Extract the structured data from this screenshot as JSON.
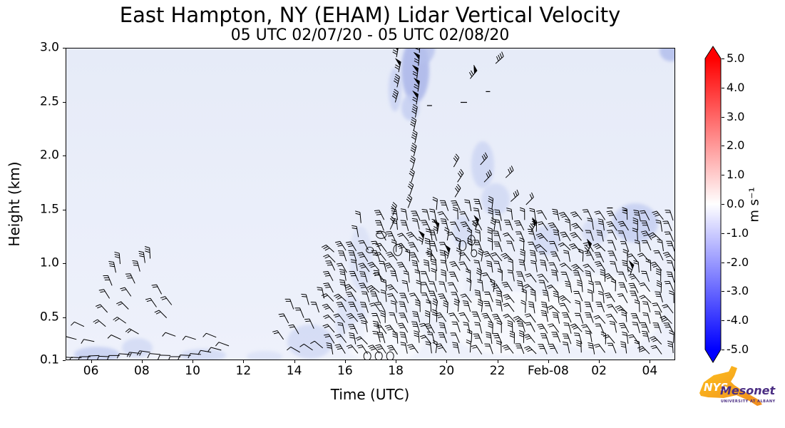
{
  "chart_data": {
    "type": "heatmap",
    "title": "East Hampton, NY (EHAM) Lidar Vertical Velocity",
    "subtitle": "05 UTC 02/07/20 - 05 UTC 02/08/20",
    "xlabel": "Time (UTC)",
    "ylabel": "Height (km)",
    "xlim_hours_utc": [
      5,
      29
    ],
    "ylim_km": [
      0.1,
      3.0
    ],
    "x_ticks": [
      {
        "t": 6,
        "label": "06"
      },
      {
        "t": 8,
        "label": "08"
      },
      {
        "t": 10,
        "label": "10"
      },
      {
        "t": 12,
        "label": "12"
      },
      {
        "t": 14,
        "label": "14"
      },
      {
        "t": 16,
        "label": "16"
      },
      {
        "t": 18,
        "label": "18"
      },
      {
        "t": 20,
        "label": "20"
      },
      {
        "t": 22,
        "label": "22"
      },
      {
        "t": 24,
        "label": "Feb-08"
      },
      {
        "t": 26,
        "label": "02"
      },
      {
        "t": 28,
        "label": "04"
      }
    ],
    "y_ticks": [
      {
        "z": 0.1,
        "label": "0.1"
      },
      {
        "z": 0.5,
        "label": "0.5"
      },
      {
        "z": 1.0,
        "label": "1.0"
      },
      {
        "z": 1.5,
        "label": "1.5"
      },
      {
        "z": 2.0,
        "label": "2.0"
      },
      {
        "z": 2.5,
        "label": "2.5"
      },
      {
        "z": 3.0,
        "label": "3.0"
      }
    ],
    "plot_background": {
      "top": "#e6ebf8",
      "bottom": "#eef1fb"
    },
    "field_summary": "Vertical velocity mostly near 0 to -1 m/s (pale blue/lavender); wind barbs in boundary layer below ~1.5 km from 14 UTC onward, tall barb column near 18-19 UTC reaching 3 km, scattered early-morning barbs 05-11 UTC below 1 km.",
    "colorbar": {
      "label": "m s⁻¹",
      "min": -5.0,
      "max": 5.0,
      "extend": "both",
      "colors": {
        "positive": "#ff0000",
        "zero": "#ffffff",
        "negative": "#0000ff"
      },
      "ticks": [
        {
          "v": 5,
          "label": "5.0"
        },
        {
          "v": 4,
          "label": "4.0"
        },
        {
          "v": 3,
          "label": "3.0"
        },
        {
          "v": 2,
          "label": "2.0"
        },
        {
          "v": 1,
          "label": "1.0"
        },
        {
          "v": 0,
          "label": "0.0"
        },
        {
          "v": -1,
          "label": "-1.0"
        },
        {
          "v": -2,
          "label": "-2.0"
        },
        {
          "v": -3,
          "label": "-3.0"
        },
        {
          "v": -4,
          "label": "-4.0"
        },
        {
          "v": -5,
          "label": "-5.0"
        }
      ]
    },
    "velocity_patches": [
      [
        18.75,
        2.8,
        0.55,
        0.3,
        "#aeb9ea",
        0.9
      ],
      [
        18.55,
        2.45,
        0.35,
        0.12,
        "#c3cdf1",
        0.8
      ],
      [
        19.05,
        3.0,
        0.45,
        0.14,
        "#b6c1ed",
        0.8
      ],
      [
        17.95,
        2.62,
        0.25,
        0.2,
        "#c3cdf1",
        0.7
      ],
      [
        28.8,
        2.98,
        0.45,
        0.1,
        "#b6c1ed",
        0.9
      ],
      [
        21.4,
        1.92,
        0.45,
        0.22,
        "#ccd5f3",
        0.8
      ],
      [
        21.9,
        1.6,
        0.55,
        0.15,
        "#ccd5f3",
        0.7
      ],
      [
        23.9,
        1.22,
        0.55,
        0.14,
        "#ccd5f3",
        0.7
      ],
      [
        27.4,
        1.38,
        0.9,
        0.18,
        "#c3cdf1",
        0.8
      ],
      [
        25.8,
        1.3,
        0.5,
        0.12,
        "#ccd5f3",
        0.6
      ],
      [
        20.6,
        1.3,
        0.4,
        0.15,
        "#ccd5f3",
        0.6
      ],
      [
        16.6,
        1.05,
        0.45,
        0.3,
        "#d4dcf5",
        0.6
      ],
      [
        14.6,
        0.28,
        0.9,
        0.16,
        "#ccd5f3",
        0.7
      ],
      [
        16.2,
        0.45,
        0.6,
        0.25,
        "#d4dcf5",
        0.6
      ],
      [
        6.2,
        0.16,
        0.9,
        0.07,
        "#c3cdf1",
        0.8
      ],
      [
        7.8,
        0.22,
        0.6,
        0.09,
        "#ccd5f3",
        0.7
      ],
      [
        10.4,
        0.15,
        0.9,
        0.06,
        "#ccd5f3",
        0.7
      ],
      [
        12.8,
        0.14,
        0.7,
        0.05,
        "#d4dcf5",
        0.6
      ],
      [
        22.5,
        0.45,
        2.5,
        0.3,
        "#ffffff",
        0.55
      ],
      [
        26.0,
        0.55,
        2.5,
        0.35,
        "#ffffff",
        0.5
      ],
      [
        17.5,
        0.3,
        1.6,
        0.22,
        "#ffffff",
        0.5
      ],
      [
        19.5,
        0.8,
        1.2,
        0.3,
        "#f7f9ff",
        0.5
      ]
    ],
    "wind_barbs": {
      "seed": 7,
      "groups": [
        {
          "t0": 15.55,
          "t1": 17.35,
          "dt": 0.45,
          "z0": 0.17,
          "z1": 1.12,
          "dz": 0.095,
          "dir": -30,
          "djit": 22,
          "spds": [
            2,
            3
          ]
        },
        {
          "t0": 17.55,
          "t1": 19.35,
          "dt": 0.45,
          "z0": 0.17,
          "z1": 1.38,
          "dz": 0.095,
          "dir": -18,
          "djit": 22,
          "spds": [
            2,
            3
          ]
        },
        {
          "t0": 19.55,
          "t1": 21.95,
          "dt": 0.45,
          "z0": 0.17,
          "z1": 1.48,
          "dz": 0.095,
          "dir": -12,
          "djit": 25,
          "spds": [
            2,
            3
          ]
        },
        {
          "t0": 22.15,
          "t1": 28.85,
          "dt": 0.45,
          "z0": 0.17,
          "z1": 1.4,
          "dz": 0.095,
          "dir": -22,
          "djit": 25,
          "spds": [
            2,
            3
          ]
        }
      ],
      "extra": [
        [
          6.55,
          0.42,
          -50,
          2
        ],
        [
          6.62,
          0.55,
          -42,
          2
        ],
        [
          6.7,
          0.68,
          -32,
          2
        ],
        [
          6.8,
          0.8,
          -22,
          3
        ],
        [
          6.95,
          0.92,
          -12,
          3
        ],
        [
          7.12,
          1.0,
          -5,
          3
        ],
        [
          7.35,
          0.45,
          -55,
          2
        ],
        [
          7.45,
          0.58,
          -45,
          2
        ],
        [
          7.55,
          0.7,
          -35,
          2
        ],
        [
          7.7,
          0.82,
          -25,
          3
        ],
        [
          7.9,
          0.93,
          -15,
          3
        ],
        [
          8.1,
          1.01,
          -8,
          3
        ],
        [
          8.3,
          1.05,
          -3,
          3
        ],
        [
          7.15,
          0.3,
          -65,
          1
        ],
        [
          7.85,
          0.35,
          -60,
          2
        ],
        [
          8.55,
          0.6,
          -35,
          2
        ],
        [
          8.75,
          0.72,
          -28,
          2
        ],
        [
          8.95,
          0.5,
          -45,
          2
        ],
        [
          9.15,
          0.62,
          -38,
          2
        ],
        [
          5.25,
          0.13,
          -85,
          1
        ],
        [
          5.6,
          0.13,
          -88,
          1
        ],
        [
          5.95,
          0.14,
          -90,
          1
        ],
        [
          6.3,
          0.15,
          -92,
          1
        ],
        [
          6.7,
          0.14,
          -88,
          1
        ],
        [
          7.1,
          0.15,
          -90,
          1
        ],
        [
          7.5,
          0.16,
          -86,
          1
        ],
        [
          7.9,
          0.17,
          -84,
          2
        ],
        [
          8.3,
          0.18,
          -82,
          2
        ],
        [
          8.7,
          0.16,
          -85,
          1
        ],
        [
          9.1,
          0.15,
          -88,
          1
        ],
        [
          9.5,
          0.14,
          -90,
          1
        ],
        [
          9.9,
          0.15,
          -87,
          1
        ],
        [
          10.3,
          0.16,
          -85,
          1
        ],
        [
          10.7,
          0.18,
          -80,
          1
        ],
        [
          11.1,
          0.2,
          -75,
          1
        ],
        [
          11.4,
          0.24,
          -70,
          1
        ],
        [
          5.4,
          0.3,
          -75,
          1
        ],
        [
          5.7,
          0.42,
          -65,
          1
        ],
        [
          6.1,
          0.28,
          -78,
          1
        ],
        [
          9.3,
          0.33,
          -70,
          1
        ],
        [
          10.1,
          0.3,
          -72,
          1
        ],
        [
          10.9,
          0.32,
          -68,
          1
        ],
        [
          13.55,
          0.3,
          -35,
          2
        ],
        [
          13.75,
          0.45,
          -28,
          2
        ],
        [
          13.95,
          0.58,
          -20,
          2
        ],
        [
          14.15,
          0.35,
          -30,
          2
        ],
        [
          14.35,
          0.5,
          -22,
          2
        ],
        [
          14.55,
          0.62,
          -15,
          2
        ],
        [
          14.75,
          0.4,
          -25,
          2
        ],
        [
          14.95,
          0.55,
          -18,
          2
        ],
        [
          15.15,
          0.68,
          -12,
          2
        ],
        [
          14.2,
          0.18,
          -60,
          1
        ],
        [
          14.7,
          0.2,
          -55,
          1
        ],
        [
          15.1,
          0.22,
          -50,
          1
        ],
        [
          18.45,
          1.52,
          22,
          3
        ],
        [
          18.52,
          1.64,
          20,
          3
        ],
        [
          18.58,
          1.76,
          18,
          3
        ],
        [
          18.62,
          1.88,
          16,
          3
        ],
        [
          18.68,
          2.0,
          14,
          4
        ],
        [
          18.72,
          2.12,
          13,
          4
        ],
        [
          18.68,
          2.24,
          12,
          4
        ],
        [
          18.74,
          2.36,
          11,
          4
        ],
        [
          18.78,
          2.48,
          10,
          5
        ],
        [
          18.84,
          2.6,
          9,
          5
        ],
        [
          18.8,
          2.72,
          7,
          5
        ],
        [
          18.86,
          2.84,
          6,
          5
        ],
        [
          18.9,
          2.96,
          4,
          5
        ],
        [
          17.95,
          2.5,
          16,
          4
        ],
        [
          18.02,
          2.64,
          14,
          4
        ],
        [
          18.08,
          2.78,
          12,
          5
        ],
        [
          18.0,
          2.92,
          10,
          5
        ],
        [
          18.15,
          3.0,
          8,
          5
        ],
        [
          17.75,
          1.32,
          25,
          2
        ],
        [
          17.85,
          1.45,
          22,
          3
        ],
        [
          20.9,
          2.72,
          40,
          5
        ],
        [
          21.9,
          2.86,
          48,
          4
        ],
        [
          21.3,
          1.92,
          42,
          3
        ],
        [
          21.45,
          1.76,
          44,
          3
        ],
        [
          22.3,
          1.8,
          46,
          3
        ],
        [
          22.5,
          1.58,
          48,
          3
        ],
        [
          20.3,
          1.62,
          32,
          3
        ],
        [
          20.4,
          1.76,
          34,
          3
        ],
        [
          20.25,
          1.9,
          30,
          3
        ],
        [
          23.1,
          1.55,
          45,
          2
        ],
        [
          19.6,
          1.28,
          10,
          5
        ],
        [
          19.0,
          1.18,
          12,
          5
        ],
        [
          21.1,
          1.32,
          20,
          5
        ],
        [
          23.3,
          1.3,
          30,
          5
        ],
        [
          20.0,
          1.05,
          15,
          5
        ],
        [
          25.5,
          1.1,
          25,
          5
        ],
        [
          27.2,
          0.9,
          20,
          5
        ],
        [
          16.5,
          1.25,
          -10,
          2
        ],
        [
          16.6,
          1.38,
          -5,
          2
        ]
      ]
    },
    "contours": {
      "ellipses": [
        [
          16.85,
          0.145,
          5,
          6
        ],
        [
          17.3,
          0.145,
          5,
          6
        ],
        [
          17.75,
          0.145,
          5,
          6
        ],
        [
          17.4,
          1.27,
          7,
          5
        ],
        [
          18.05,
          1.13,
          6,
          8
        ],
        [
          20.6,
          1.17,
          5,
          7
        ],
        [
          20.95,
          1.22,
          5,
          7
        ],
        [
          21.05,
          1.1,
          4,
          5
        ],
        [
          16.95,
          1.13,
          5,
          4
        ]
      ],
      "dashes": [
        [
          20.65,
          2.5,
          9
        ],
        [
          19.3,
          2.47,
          7
        ],
        [
          26.4,
          1.52,
          8
        ],
        [
          27.0,
          1.5,
          6
        ],
        [
          21.6,
          2.6,
          6
        ]
      ]
    }
  },
  "branding": {
    "org": "NYS",
    "name": "Mesonet",
    "affiliation": "UNIVERSITY AT ALBANY",
    "colors": {
      "state_orange": "#F6A01A",
      "purple": "#4B2E83"
    }
  }
}
